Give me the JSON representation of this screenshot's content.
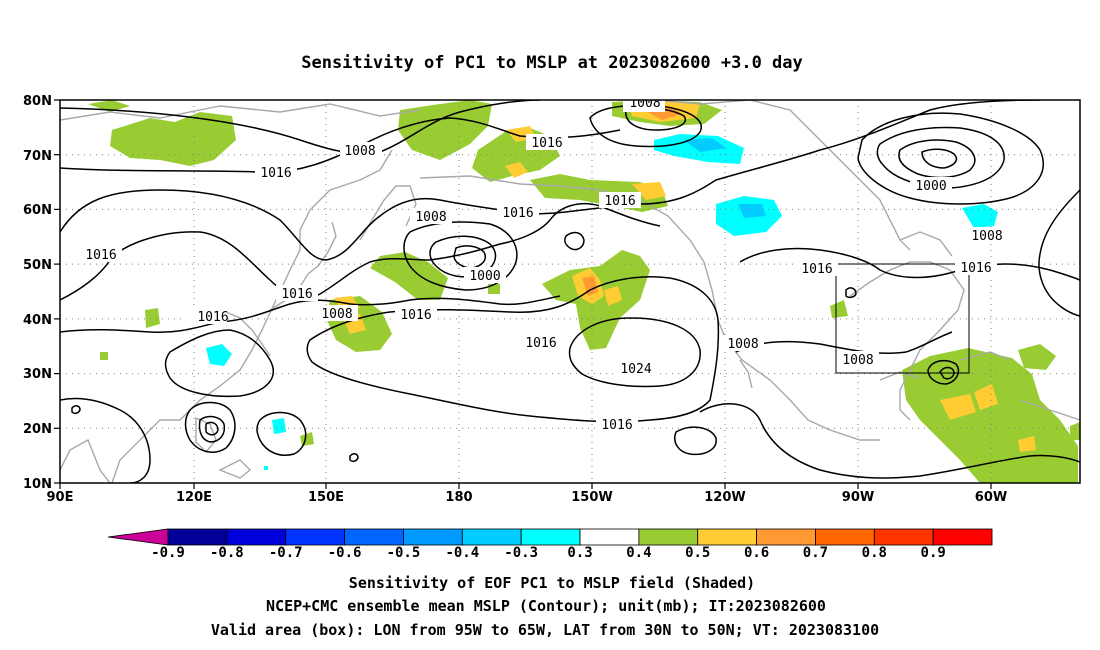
{
  "title": "Sensitivity of PC1 to MSLP at 2023082600 +3.0 day",
  "map": {
    "lat_labels": [
      "80N",
      "70N",
      "60N",
      "50N",
      "40N",
      "30N",
      "20N",
      "10N"
    ],
    "lon_labels": [
      "90E",
      "120E",
      "150E",
      "180",
      "150W",
      "120W",
      "90W",
      "60W"
    ],
    "land_color": "#a8a8a8",
    "contour_color": "#000000",
    "grid_style": "dotted",
    "contour_labels": [
      "1008",
      "1016",
      "1016",
      "1016",
      "1016",
      "1008",
      "1000",
      "1016",
      "1016",
      "1008",
      "1016",
      "1016",
      "1024",
      "1016",
      "1008",
      "1016",
      "1008",
      "1016",
      "1000",
      "1008",
      "1016",
      "1008"
    ],
    "valid_box": {
      "lon_range": [
        "95W",
        "65W"
      ],
      "lat_range": [
        "30N",
        "50N"
      ]
    },
    "shading_colors": {
      "positive_0_3_0_4": "#99cc33",
      "positive_0_4_0_5": "#ffcc33",
      "positive_0_5_0_6": "#ff9933",
      "negative_0_4_0_3": "#00ffff",
      "negative_0_5_0_4": "#00ccff"
    }
  },
  "colorbar": {
    "labels": [
      "-0.9",
      "-0.8",
      "-0.7",
      "-0.6",
      "-0.5",
      "-0.4",
      "-0.3",
      "0.3",
      "0.4",
      "0.5",
      "0.6",
      "0.7",
      "0.8",
      "0.9"
    ],
    "colors": [
      "#000099",
      "#0000dd",
      "#0033ff",
      "#0066ff",
      "#0099ff",
      "#00ccff",
      "#00ffff",
      "#ffffff",
      "#99cc33",
      "#ffcc33",
      "#ff9933",
      "#ff6600",
      "#ff3300",
      "#ff0000"
    ],
    "low_extension_color": "#cc0099",
    "high_extension_color": "#ff99cc"
  },
  "caption": [
    "Sensitivity of EOF PC1 to MSLP field (Shaded)",
    "NCEP+CMC ensemble mean MSLP (Contour); unit(mb); IT:2023082600",
    "Valid area (box): LON from 95W to 65W, LAT from 30N to 50N; VT: 2023083100"
  ]
}
